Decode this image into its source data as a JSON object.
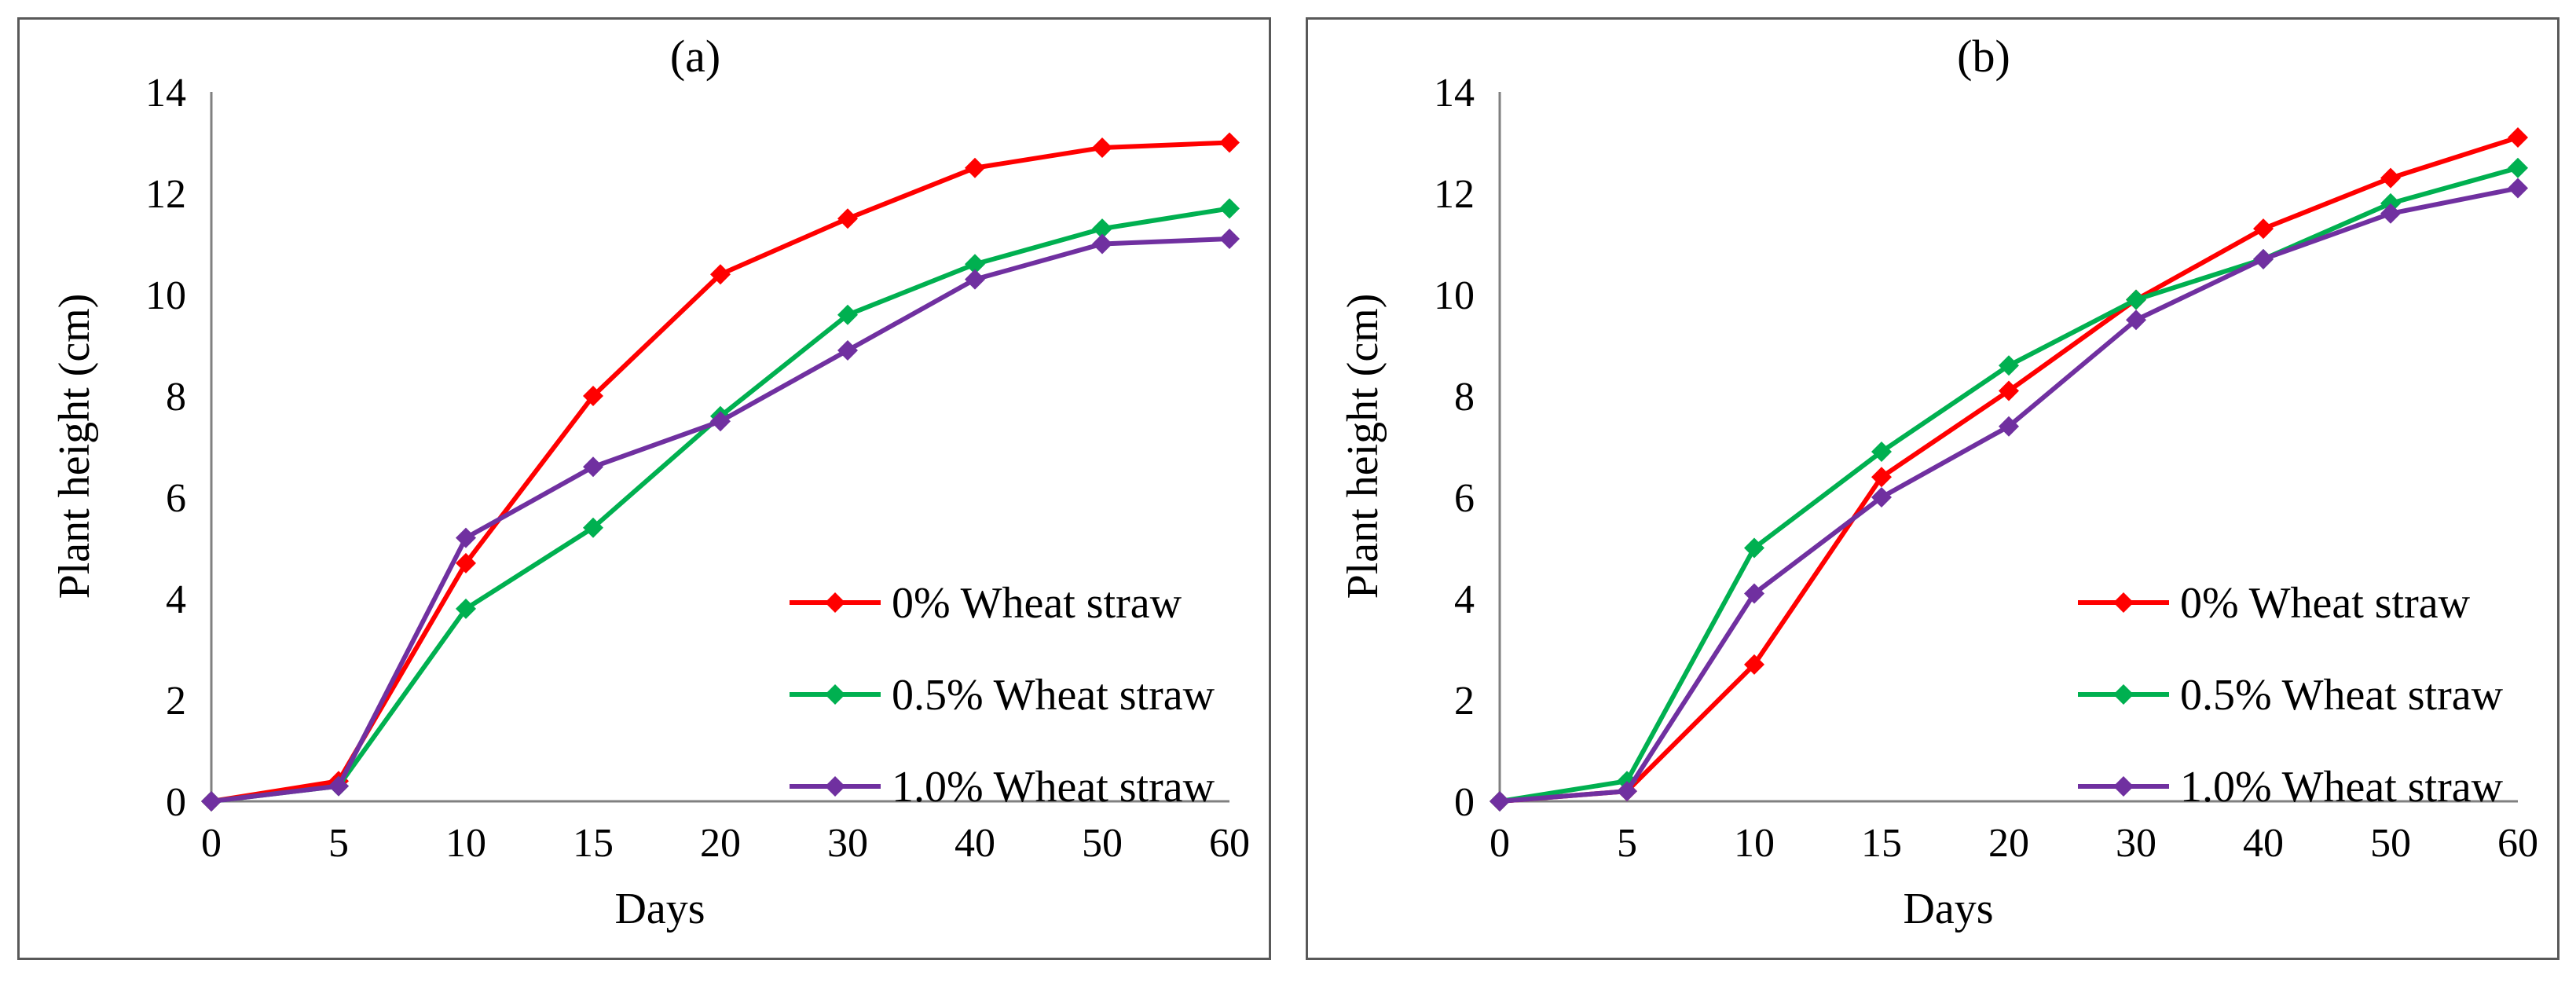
{
  "chart_data": [
    {
      "id": "a",
      "type": "line",
      "title": "(a)",
      "xlabel": "Days",
      "ylabel": "Plant height (cm)",
      "categories": [
        "0",
        "5",
        "10",
        "15",
        "20",
        "30",
        "40",
        "50",
        "60"
      ],
      "ylim": [
        0,
        14
      ],
      "yticks": [
        "0",
        "2",
        "4",
        "6",
        "8",
        "10",
        "12",
        "14"
      ],
      "grid": false,
      "legend_position": "bottom-right",
      "series": [
        {
          "name": "0% Wheat straw",
          "color": "#ff0000",
          "values": [
            0,
            0.4,
            4.7,
            8.0,
            10.4,
            11.5,
            12.5,
            12.9,
            13.0
          ]
        },
        {
          "name": "0.5% Wheat straw",
          "color": "#00b050",
          "values": [
            0,
            0.3,
            3.8,
            5.4,
            7.6,
            9.6,
            10.6,
            11.3,
            11.7
          ]
        },
        {
          "name": "1.0% Wheat straw",
          "color": "#7030a0",
          "values": [
            0,
            0.3,
            5.2,
            6.6,
            7.5,
            8.9,
            10.3,
            11.0,
            11.1
          ]
        }
      ]
    },
    {
      "id": "b",
      "type": "line",
      "title": "(b)",
      "xlabel": "Days",
      "ylabel": "Plant height (cm)",
      "categories": [
        "0",
        "5",
        "10",
        "15",
        "20",
        "30",
        "40",
        "50",
        "60"
      ],
      "ylim": [
        0,
        14
      ],
      "yticks": [
        "0",
        "2",
        "4",
        "6",
        "8",
        "10",
        "12",
        "14"
      ],
      "grid": false,
      "legend_position": "bottom-right",
      "series": [
        {
          "name": "0% Wheat straw",
          "color": "#ff0000",
          "values": [
            0,
            0.2,
            2.7,
            6.4,
            8.1,
            9.9,
            11.3,
            12.3,
            13.1
          ]
        },
        {
          "name": "0.5% Wheat straw",
          "color": "#00b050",
          "values": [
            0,
            0.4,
            5.0,
            6.9,
            8.6,
            9.9,
            10.7,
            11.8,
            12.5
          ]
        },
        {
          "name": "1.0% Wheat straw",
          "color": "#7030a0",
          "values": [
            0,
            0.2,
            4.1,
            6.0,
            7.4,
            9.5,
            10.7,
            11.6,
            12.1
          ]
        }
      ]
    }
  ]
}
